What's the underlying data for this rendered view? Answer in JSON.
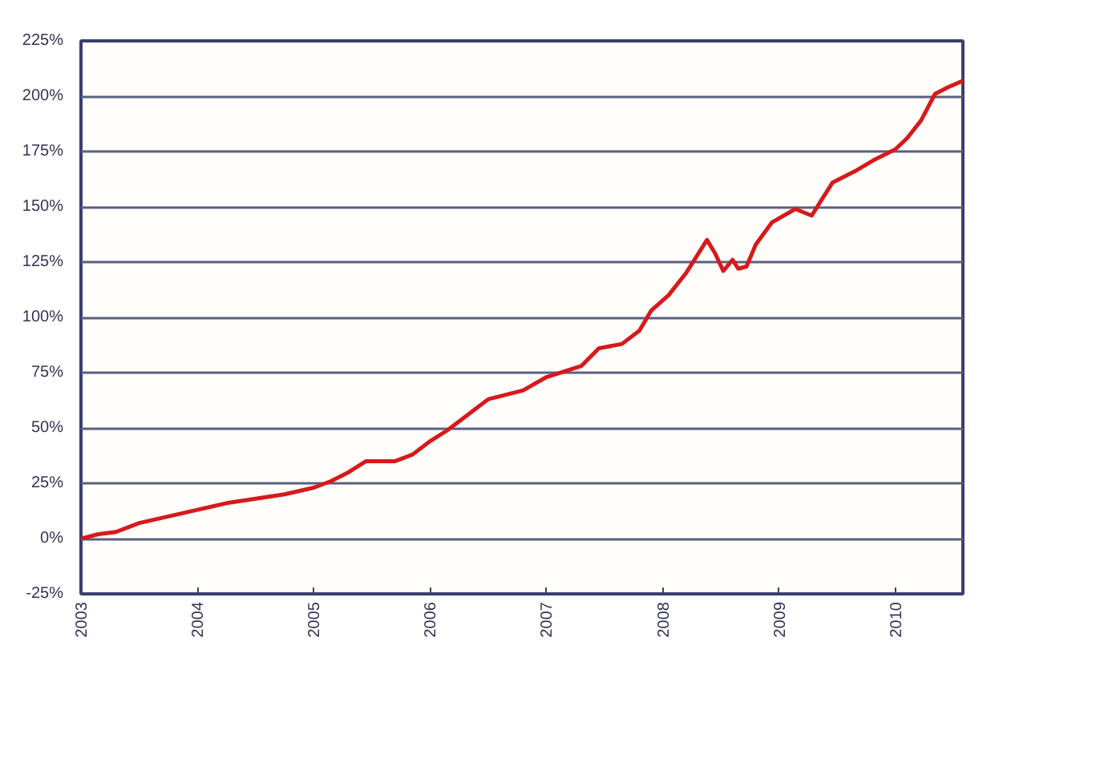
{
  "chart_data": {
    "type": "line",
    "x": [
      2003.0,
      2003.15,
      2003.3,
      2003.5,
      2003.75,
      2004.0,
      2004.25,
      2004.5,
      2004.75,
      2005.0,
      2005.15,
      2005.3,
      2005.45,
      2005.7,
      2005.85,
      2006.0,
      2006.15,
      2006.3,
      2006.5,
      2006.8,
      2007.0,
      2007.3,
      2007.45,
      2007.65,
      2007.8,
      2007.9,
      2008.05,
      2008.2,
      2008.38,
      2008.45,
      2008.52,
      2008.6,
      2008.65,
      2008.72,
      2008.8,
      2008.94,
      2009.14,
      2009.28,
      2009.46,
      2009.65,
      2009.81,
      2010.0,
      2010.1,
      2010.22,
      2010.34,
      2010.45,
      2010.58
    ],
    "series": [
      {
        "color": "#d7191c",
        "values": [
          0,
          2,
          3,
          7,
          10,
          13,
          16,
          18,
          20,
          23,
          26,
          30,
          35,
          35,
          38,
          44,
          49,
          55,
          63,
          67,
          73,
          78,
          86,
          88,
          94,
          103,
          110,
          120,
          135,
          129,
          121,
          126,
          122,
          123,
          133,
          143,
          149,
          146,
          161,
          166,
          171,
          176,
          181,
          189,
          201,
          204,
          207
        ]
      }
    ],
    "xlim": [
      2003,
      2010.58
    ],
    "xticks": [
      2003,
      2004,
      2005,
      2006,
      2007,
      2008,
      2009,
      2010
    ],
    "ylim": [
      -25,
      225
    ],
    "yticks": [
      {
        "value": -25,
        "label": "-25%"
      },
      {
        "value": 0,
        "label": "0%"
      },
      {
        "value": 25,
        "label": "25%"
      },
      {
        "value": 50,
        "label": "50%"
      },
      {
        "value": 75,
        "label": "75%"
      },
      {
        "value": 100,
        "label": "100%"
      },
      {
        "value": 125,
        "label": "125%"
      },
      {
        "value": 150,
        "label": "150%"
      },
      {
        "value": 175,
        "label": "175%"
      },
      {
        "value": 200,
        "label": "200%"
      },
      {
        "value": 225,
        "label": "225%"
      }
    ],
    "grid": "y",
    "marker": "none",
    "line_style": "solid"
  }
}
